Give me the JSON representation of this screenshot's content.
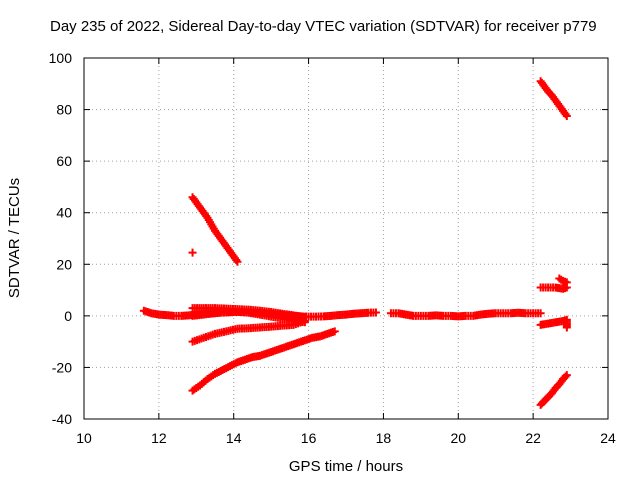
{
  "chart_data": {
    "type": "scatter",
    "title": "Day 235 of 2022, Sidereal Day-to-day VTEC variation (SDTVAR) for receiver p779",
    "xlabel": "GPS time / hours",
    "ylabel": "SDTVAR / TECUs",
    "xlim": [
      10,
      24
    ],
    "ylim": [
      -40,
      100
    ],
    "xticks": [
      10,
      12,
      14,
      16,
      18,
      20,
      22,
      24
    ],
    "yticks": [
      -40,
      -20,
      0,
      20,
      40,
      60,
      80,
      100
    ],
    "xtick_labels": [
      "10",
      "12",
      "14",
      "16",
      "18",
      "20",
      "22",
      "24"
    ],
    "ytick_labels": [
      "-40",
      "-20",
      "0",
      "20",
      "40",
      "60",
      "80",
      "100"
    ],
    "grid": true,
    "marker": "+",
    "color": "#ff0000",
    "series": [
      {
        "points": [
          [
            11.6,
            2
          ],
          [
            11.8,
            1
          ],
          [
            12.0,
            0.5
          ],
          [
            12.2,
            0.3
          ],
          [
            12.4,
            0
          ],
          [
            12.6,
            0
          ],
          [
            12.8,
            0.2
          ],
          [
            13.0,
            0.5
          ],
          [
            13.2,
            0.8
          ],
          [
            13.4,
            1
          ],
          [
            13.6,
            1.2
          ],
          [
            13.8,
            1.3
          ],
          [
            14.0,
            1.5
          ],
          [
            14.2,
            1.5
          ],
          [
            14.4,
            1.4
          ],
          [
            14.6,
            1.2
          ],
          [
            14.8,
            1
          ],
          [
            15.0,
            0.8
          ],
          [
            15.2,
            0.5
          ],
          [
            15.4,
            0.2
          ],
          [
            15.6,
            0
          ],
          [
            15.8,
            -0.2
          ],
          [
            16.0,
            -0.3
          ],
          [
            16.2,
            -0.3
          ],
          [
            16.4,
            -0.2
          ],
          [
            16.6,
            0
          ],
          [
            16.8,
            0.3
          ],
          [
            17.0,
            0.5
          ],
          [
            17.2,
            0.8
          ],
          [
            17.4,
            1
          ],
          [
            17.6,
            1.2
          ],
          [
            17.8,
            1.3
          ]
        ]
      },
      {
        "points": [
          [
            12.9,
            3
          ],
          [
            13.2,
            3
          ],
          [
            13.5,
            3
          ],
          [
            13.8,
            2.8
          ],
          [
            14.1,
            2.6
          ],
          [
            14.4,
            2.4
          ],
          [
            14.7,
            2
          ],
          [
            15.0,
            1.5
          ],
          [
            15.3,
            0.8
          ],
          [
            15.6,
            0.2
          ],
          [
            15.9,
            -0.5
          ]
        ]
      },
      {
        "points": [
          [
            12.9,
            0
          ],
          [
            13.2,
            0.5
          ],
          [
            13.5,
            1
          ],
          [
            13.8,
            1.5
          ],
          [
            14.1,
            1.6
          ],
          [
            14.4,
            1.2
          ],
          [
            14.7,
            0.5
          ],
          [
            15.0,
            -0.3
          ],
          [
            15.3,
            -1
          ],
          [
            15.6,
            -1.8
          ],
          [
            15.9,
            -2.5
          ]
        ]
      },
      {
        "points": [
          [
            12.9,
            46
          ],
          [
            13.0,
            44
          ],
          [
            13.1,
            42
          ],
          [
            13.2,
            40
          ],
          [
            13.3,
            38
          ],
          [
            13.4,
            35.5
          ],
          [
            13.5,
            33
          ],
          [
            13.6,
            31
          ],
          [
            13.7,
            29
          ],
          [
            13.8,
            27
          ],
          [
            13.9,
            25
          ],
          [
            14.0,
            23
          ],
          [
            14.1,
            21
          ]
        ]
      },
      {
        "points": [
          [
            12.9,
            24.5
          ]
        ]
      },
      {
        "points": [
          [
            12.9,
            -10
          ],
          [
            13.2,
            -8.5
          ],
          [
            13.5,
            -7
          ],
          [
            13.8,
            -6
          ],
          [
            14.1,
            -5
          ],
          [
            14.4,
            -4.8
          ],
          [
            14.7,
            -4.5
          ],
          [
            15.0,
            -4.2
          ],
          [
            15.3,
            -3.8
          ],
          [
            15.6,
            -3.5
          ],
          [
            15.9,
            -2
          ]
        ]
      },
      {
        "points": [
          [
            12.9,
            -29
          ],
          [
            13.1,
            -27
          ],
          [
            13.3,
            -24.5
          ],
          [
            13.5,
            -22.5
          ],
          [
            13.7,
            -21
          ],
          [
            13.9,
            -19.5
          ],
          [
            14.1,
            -18
          ],
          [
            14.3,
            -17
          ],
          [
            14.5,
            -16
          ],
          [
            14.7,
            -15.5
          ],
          [
            14.9,
            -14.5
          ],
          [
            15.1,
            -13.5
          ],
          [
            15.3,
            -12.5
          ],
          [
            15.5,
            -11.5
          ],
          [
            15.7,
            -10.5
          ],
          [
            15.9,
            -9.5
          ],
          [
            16.1,
            -8.5
          ],
          [
            16.3,
            -8
          ],
          [
            16.5,
            -7
          ],
          [
            16.7,
            -6
          ]
        ]
      },
      {
        "points": [
          [
            18.2,
            1
          ],
          [
            18.4,
            1
          ],
          [
            18.6,
            0.5
          ],
          [
            18.8,
            0
          ],
          [
            19.0,
            0
          ],
          [
            19.2,
            0
          ],
          [
            19.4,
            0.2
          ],
          [
            19.6,
            0
          ],
          [
            19.8,
            0
          ],
          [
            20.0,
            -0.2
          ],
          [
            20.2,
            0
          ],
          [
            20.4,
            0
          ],
          [
            20.6,
            0.5
          ],
          [
            20.8,
            0.8
          ],
          [
            21.0,
            1
          ],
          [
            21.2,
            1
          ],
          [
            21.4,
            1
          ],
          [
            21.6,
            1.2
          ],
          [
            21.8,
            1
          ],
          [
            22.0,
            1
          ],
          [
            22.2,
            1
          ]
        ]
      },
      {
        "points": [
          [
            22.2,
            91
          ],
          [
            22.3,
            89
          ],
          [
            22.4,
            87
          ],
          [
            22.5,
            85.5
          ],
          [
            22.6,
            83.5
          ],
          [
            22.7,
            81.5
          ],
          [
            22.8,
            79.5
          ],
          [
            22.9,
            77.5
          ]
        ]
      },
      {
        "points": [
          [
            22.7,
            14.5
          ],
          [
            22.8,
            13.5
          ],
          [
            22.9,
            13
          ]
        ]
      },
      {
        "points": [
          [
            22.2,
            11
          ],
          [
            22.4,
            11
          ],
          [
            22.6,
            11
          ],
          [
            22.8,
            10.5
          ],
          [
            22.9,
            11
          ]
        ]
      },
      {
        "points": [
          [
            22.2,
            -3.5
          ],
          [
            22.4,
            -3
          ],
          [
            22.6,
            -2.5
          ],
          [
            22.8,
            -2
          ],
          [
            22.9,
            -1.5
          ],
          [
            22.9,
            -4.5
          ]
        ]
      },
      {
        "points": [
          [
            22.2,
            -34.5
          ],
          [
            22.3,
            -33
          ],
          [
            22.4,
            -31.5
          ],
          [
            22.5,
            -30
          ],
          [
            22.6,
            -28
          ],
          [
            22.7,
            -26.5
          ],
          [
            22.8,
            -24.5
          ],
          [
            22.9,
            -23
          ]
        ]
      }
    ]
  }
}
